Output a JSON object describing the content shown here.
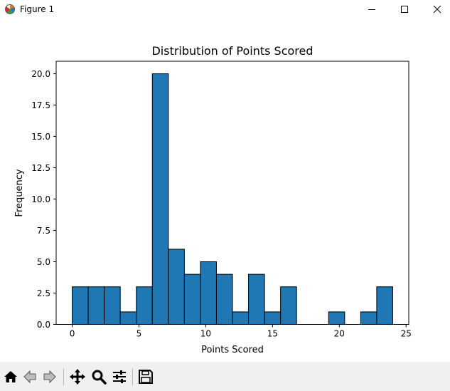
{
  "window": {
    "title": "Figure 1",
    "controls": [
      "minimize",
      "maximize",
      "close"
    ]
  },
  "toolbar": {
    "buttons": [
      {
        "name": "home",
        "icon": "home-icon"
      },
      {
        "name": "back",
        "icon": "arrow-left-icon"
      },
      {
        "name": "forward",
        "icon": "arrow-right-icon"
      },
      {
        "name": "pan",
        "icon": "move-icon"
      },
      {
        "name": "zoom",
        "icon": "magnifier-icon"
      },
      {
        "name": "configure-subplots",
        "icon": "sliders-icon"
      },
      {
        "name": "save",
        "icon": "floppy-disk-icon"
      }
    ]
  },
  "chart_data": {
    "type": "bar",
    "title": "Distribution of Points Scored",
    "xlabel": "Points Scored",
    "ylabel": "Frequency",
    "bin_edges": [
      0,
      1.2,
      2.4,
      3.6,
      4.8,
      6.0,
      7.2,
      8.4,
      9.6,
      10.8,
      12.0,
      13.2,
      14.4,
      15.6,
      16.8,
      18.0,
      19.2,
      20.4,
      21.6,
      22.8,
      24.0
    ],
    "values": [
      3,
      3,
      3,
      1,
      3,
      20,
      6,
      4,
      5,
      4,
      1,
      4,
      1,
      3,
      0,
      0,
      1,
      0,
      1,
      3
    ],
    "xlim": [
      -1.2,
      25.2
    ],
    "ylim": [
      0,
      21
    ],
    "xticks": [
      0,
      5,
      10,
      15,
      20,
      25
    ],
    "xtick_labels": [
      "0",
      "5",
      "10",
      "15",
      "20",
      "25"
    ],
    "yticks": [
      0,
      2.5,
      5,
      7.5,
      10,
      12.5,
      15,
      17.5,
      20
    ],
    "ytick_labels": [
      "0.0",
      "2.5",
      "5.0",
      "7.5",
      "10.0",
      "12.5",
      "15.0",
      "17.5",
      "20.0"
    ],
    "bar_color": "#1f77b4",
    "edge_color": "#000000",
    "grid": false,
    "legend": "none"
  }
}
